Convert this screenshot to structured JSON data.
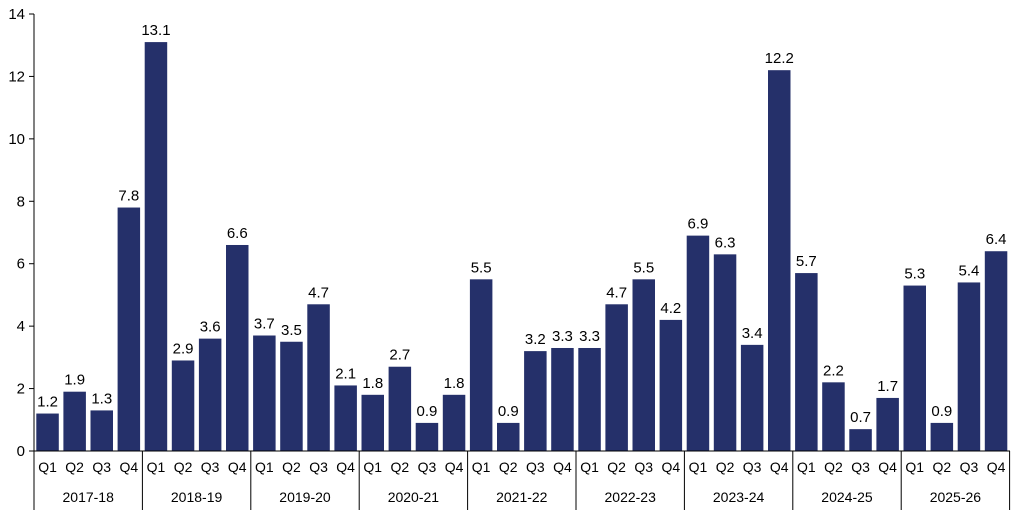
{
  "chart_data": {
    "type": "bar",
    "title": "",
    "xlabel": "",
    "ylabel": "",
    "ylim": [
      0,
      14
    ],
    "yticks": [
      0,
      2,
      4,
      6,
      8,
      10,
      12,
      14
    ],
    "grid": false,
    "legend": "none",
    "bar_color": "#25306A",
    "quarters": [
      "Q1",
      "Q2",
      "Q3",
      "Q4"
    ],
    "groups": [
      "2017-18",
      "2018-19",
      "2019-20",
      "2020-21",
      "2021-22",
      "2022-23",
      "2023-24",
      "2024-25",
      "2025-26"
    ],
    "values": [
      1.2,
      1.9,
      1.3,
      7.8,
      13.1,
      2.9,
      3.6,
      6.6,
      3.7,
      3.5,
      4.7,
      2.1,
      1.8,
      2.7,
      0.9,
      1.8,
      5.5,
      0.9,
      3.2,
      3.3,
      3.3,
      4.7,
      5.5,
      4.2,
      6.9,
      6.3,
      3.4,
      12.2,
      5.7,
      2.2,
      0.7,
      1.7,
      5.3,
      0.9,
      5.4,
      6.4
    ]
  }
}
